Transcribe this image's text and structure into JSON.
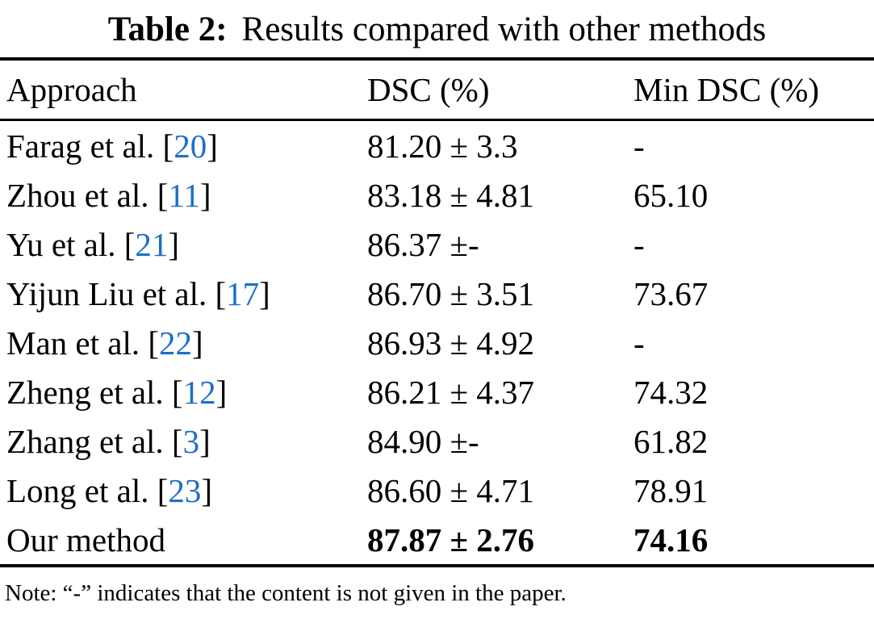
{
  "colors": {
    "citation_blue": "#1d6fc8",
    "text": "#000000",
    "background": "#ffffff"
  },
  "caption": {
    "label": "Table 2:",
    "title": "Results compared with other methods"
  },
  "table": {
    "headers": [
      "Approach",
      "DSC (%)",
      "Min DSC (%)"
    ],
    "cite_open": "[",
    "cite_close": "]",
    "rows": [
      {
        "approach": "Farag et al.",
        "cite": "20",
        "dsc": "81.20 ± 3.3",
        "min_dsc": "-",
        "bold": false
      },
      {
        "approach": "Zhou et al.",
        "cite": "11",
        "dsc": "83.18 ± 4.81",
        "min_dsc": "65.10",
        "bold": false
      },
      {
        "approach": "Yu et al.",
        "cite": "21",
        "dsc": "86.37 ±-",
        "min_dsc": "-",
        "bold": false
      },
      {
        "approach": "Yijun Liu et al.",
        "cite": "17",
        "dsc": "86.70 ± 3.51",
        "min_dsc": "73.67",
        "bold": false
      },
      {
        "approach": "Man et al.",
        "cite": "22",
        "dsc": "86.93 ± 4.92",
        "min_dsc": "-",
        "bold": false
      },
      {
        "approach": "Zheng et al.",
        "cite": "12",
        "dsc": "86.21 ± 4.37",
        "min_dsc": "74.32",
        "bold": false
      },
      {
        "approach": "Zhang et al.",
        "cite": "3",
        "dsc": "84.90 ±-",
        "min_dsc": "61.82",
        "bold": false
      },
      {
        "approach": "Long et al.",
        "cite": "23",
        "dsc": "86.60 ± 4.71",
        "min_dsc": "78.91",
        "bold": false
      },
      {
        "approach": "Our method",
        "cite": null,
        "dsc": "87.87 ± 2.76",
        "min_dsc": "74.16",
        "bold": true
      }
    ]
  },
  "note": "Note: “-” indicates that the content is not given in the paper."
}
